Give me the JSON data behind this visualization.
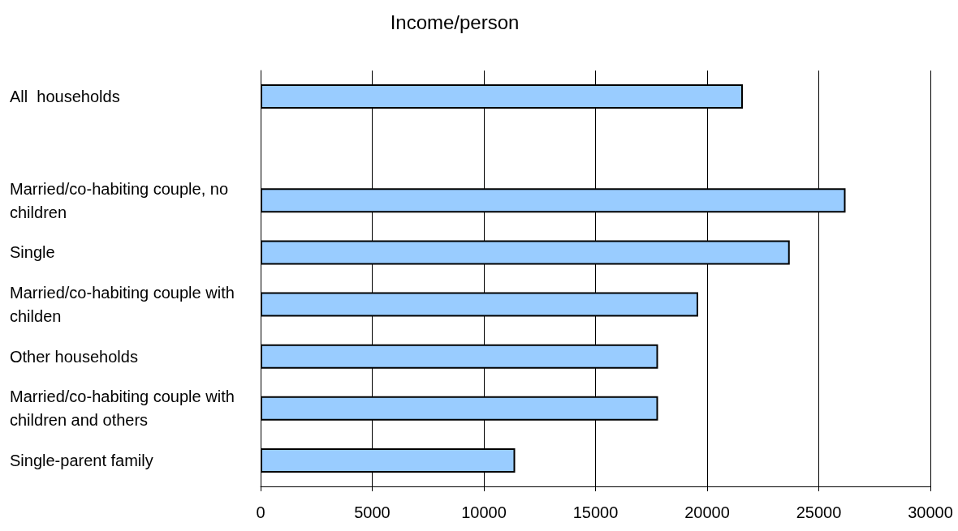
{
  "chart_data": {
    "type": "bar",
    "orientation": "horizontal",
    "title": "Income/person",
    "categories": [
      "All  households",
      null,
      "Married/co-habiting couple, no children",
      "Single",
      "Married/co-habiting couple with childen",
      "Other households",
      "Married/co-habiting couple with children and others",
      "Single-parent family"
    ],
    "values": [
      21600,
      null,
      26200,
      23700,
      19600,
      17800,
      17800,
      11400
    ],
    "color": "#99ccff",
    "xlim": [
      0,
      30000
    ],
    "xticks": [
      0,
      5000,
      10000,
      15000,
      20000,
      25000,
      30000
    ],
    "grid": "x"
  }
}
